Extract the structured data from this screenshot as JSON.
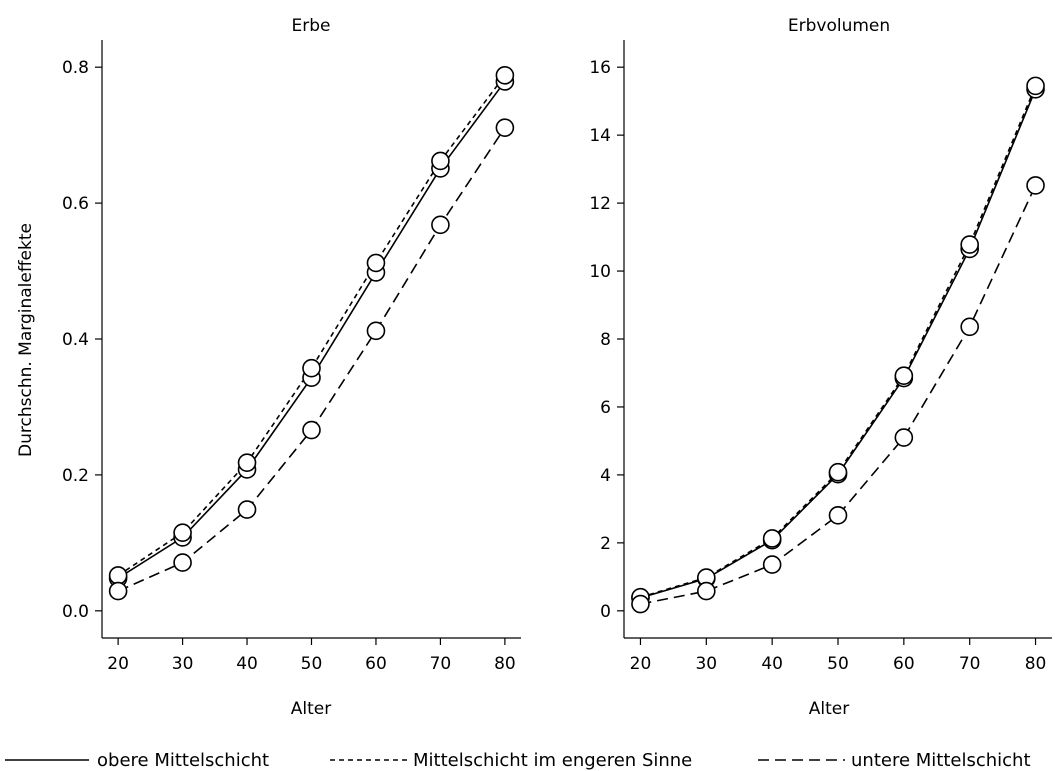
{
  "chart_data": [
    {
      "type": "line",
      "title": "Erbe",
      "xlabel": "Alter",
      "ylabel": "Durchschn. Marginaleffekte",
      "x": [
        20,
        30,
        40,
        50,
        60,
        70,
        80
      ],
      "xticks": [
        "20",
        "30",
        "40",
        "50",
        "60",
        "70",
        "80"
      ],
      "yticks": [
        "0.0",
        "0.2",
        "0.4",
        "0.6",
        "0.8"
      ],
      "xlim": [
        17.5,
        82.5
      ],
      "ylim": [
        -0.04,
        0.84
      ],
      "grid": false,
      "series": [
        {
          "name": "obere Mittelschicht",
          "dash": "solid",
          "values": [
            0.048,
            0.108,
            0.208,
            0.343,
            0.498,
            0.651,
            0.779
          ]
        },
        {
          "name": "Mittelschicht im engeren Sinne",
          "dash": "dotted",
          "values": [
            0.052,
            0.115,
            0.218,
            0.357,
            0.512,
            0.662,
            0.788
          ]
        },
        {
          "name": "untere Mittelschicht",
          "dash": "dashed",
          "values": [
            0.029,
            0.071,
            0.149,
            0.266,
            0.412,
            0.568,
            0.711
          ]
        }
      ]
    },
    {
      "type": "line",
      "title": "Erbvolumen",
      "xlabel": "Alter",
      "ylabel": "",
      "x": [
        20,
        30,
        40,
        50,
        60,
        70,
        80
      ],
      "xticks": [
        "20",
        "30",
        "40",
        "50",
        "60",
        "70",
        "80"
      ],
      "yticks": [
        "0",
        "2",
        "4",
        "6",
        "8",
        "10",
        "12",
        "14",
        "16"
      ],
      "xlim": [
        17.5,
        82.5
      ],
      "ylim": [
        -0.8,
        16.8
      ],
      "grid": false,
      "series": [
        {
          "name": "obere Mittelschicht",
          "dash": "solid",
          "values": [
            0.38,
            0.95,
            2.08,
            4.02,
            6.85,
            10.65,
            15.35
          ]
        },
        {
          "name": "Mittelschicht im engeren Sinne",
          "dash": "dotted",
          "values": [
            0.4,
            0.98,
            2.13,
            4.08,
            6.92,
            10.78,
            15.45
          ]
        },
        {
          "name": "untere Mittelschicht",
          "dash": "dashed",
          "values": [
            0.2,
            0.58,
            1.36,
            2.81,
            5.1,
            8.36,
            12.52
          ]
        }
      ]
    }
  ],
  "legend": {
    "position": "bottom",
    "items": [
      {
        "label": "obere Mittelschicht",
        "dash": "solid"
      },
      {
        "label": "Mittelschicht im engeren Sinne",
        "dash": "dotted"
      },
      {
        "label": "untere Mittelschicht",
        "dash": "dashed"
      }
    ]
  },
  "colors": {
    "line": "#000000",
    "marker_fill": "#ffffff",
    "background": "#ffffff"
  }
}
